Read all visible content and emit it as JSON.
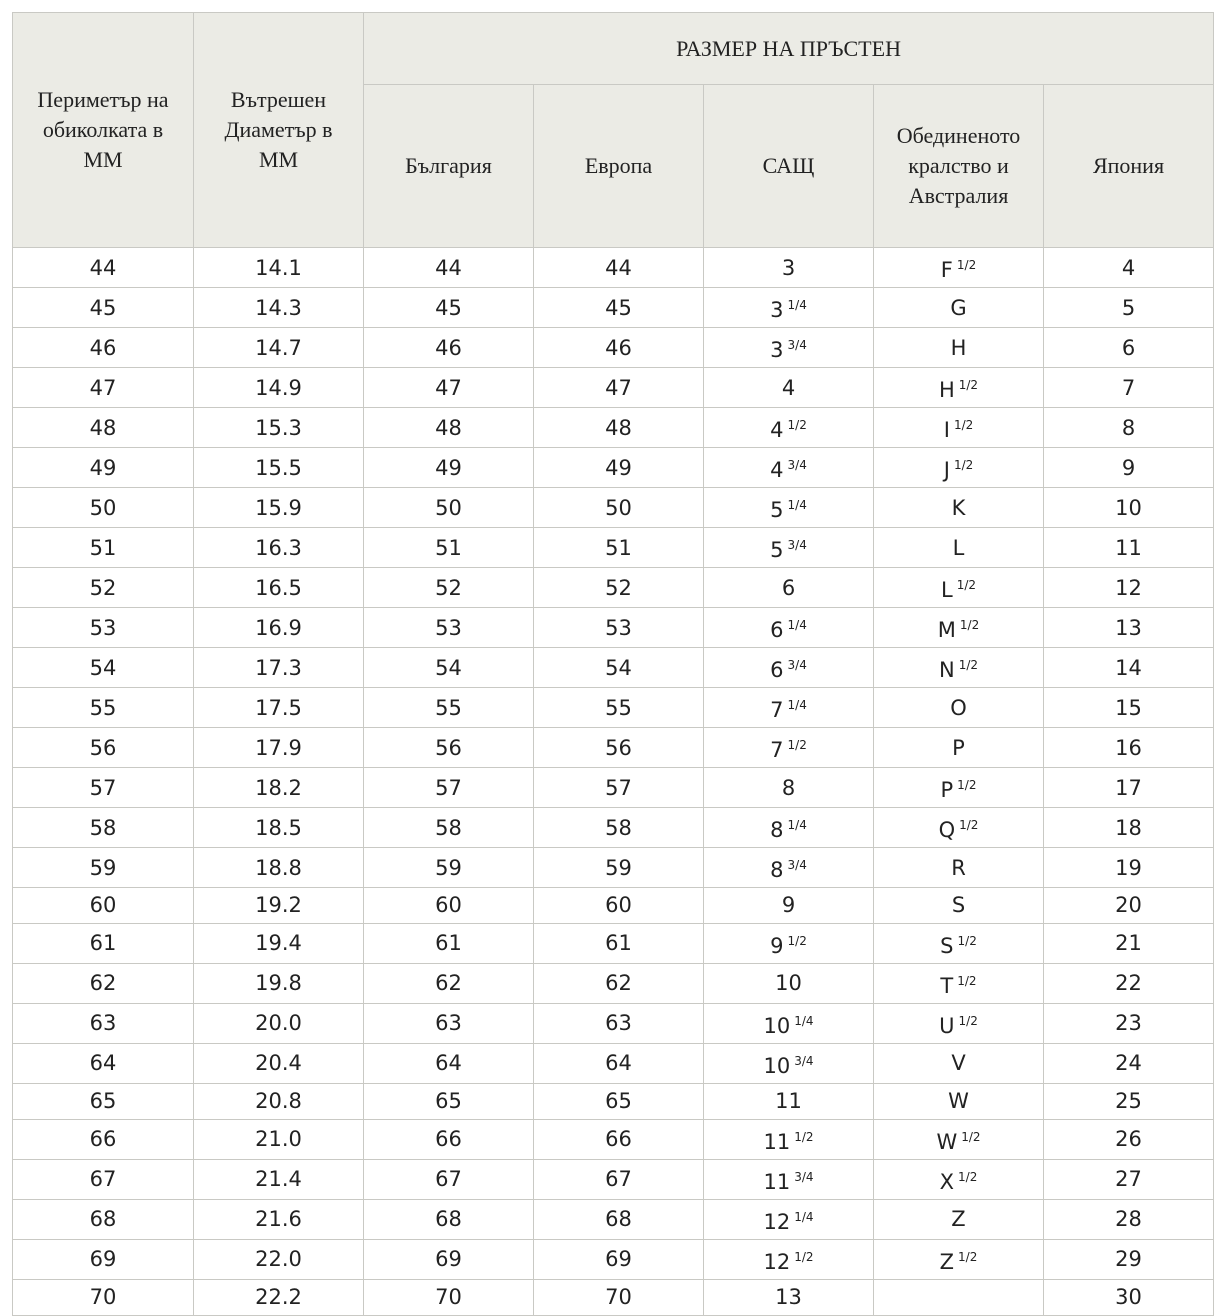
{
  "table": {
    "header": {
      "group": "РАЗМЕР НА ПРЪСТЕН",
      "columns": [
        "Периметър на обиколката в ММ",
        "Вътрешен Диаметър в ММ",
        "България",
        "Европа",
        "САЩ",
        "Обединеното кралство и Австралия",
        "Япония"
      ]
    },
    "rows": [
      [
        "44",
        "14.1",
        "44",
        "44",
        "3",
        {
          "main": "F",
          "sup": "1/2"
        },
        "4"
      ],
      [
        "45",
        "14.3",
        "45",
        "45",
        {
          "main": "3",
          "sup": "1/4"
        },
        "G",
        "5"
      ],
      [
        "46",
        "14.7",
        "46",
        "46",
        {
          "main": "3",
          "sup": "3/4"
        },
        "H",
        "6"
      ],
      [
        "47",
        "14.9",
        "47",
        "47",
        "4",
        {
          "main": "H",
          "sup": "1/2"
        },
        "7"
      ],
      [
        "48",
        "15.3",
        "48",
        "48",
        {
          "main": "4",
          "sup": "1/2"
        },
        {
          "main": "I",
          "sup": "1/2"
        },
        "8"
      ],
      [
        "49",
        "15.5",
        "49",
        "49",
        {
          "main": "4",
          "sup": "3/4"
        },
        {
          "main": "J",
          "sup": "1/2"
        },
        "9"
      ],
      [
        "50",
        "15.9",
        "50",
        "50",
        {
          "main": "5",
          "sup": "1/4"
        },
        "K",
        "10"
      ],
      [
        "51",
        "16.3",
        "51",
        "51",
        {
          "main": "5",
          "sup": "3/4"
        },
        "L",
        "11"
      ],
      [
        "52",
        "16.5",
        "52",
        "52",
        "6",
        {
          "main": "L",
          "sup": "1/2"
        },
        "12"
      ],
      [
        "53",
        "16.9",
        "53",
        "53",
        {
          "main": "6",
          "sup": "1/4"
        },
        {
          "main": "M",
          "sup": "1/2"
        },
        "13"
      ],
      [
        "54",
        "17.3",
        "54",
        "54",
        {
          "main": "6",
          "sup": "3/4"
        },
        {
          "main": "N",
          "sup": "1/2"
        },
        "14"
      ],
      [
        "55",
        "17.5",
        "55",
        "55",
        {
          "main": "7",
          "sup": "1/4"
        },
        "O",
        "15"
      ],
      [
        "56",
        "17.9",
        "56",
        "56",
        {
          "main": "7",
          "sup": "1/2"
        },
        "P",
        "16"
      ],
      [
        "57",
        "18.2",
        "57",
        "57",
        "8",
        {
          "main": "P",
          "sup": "1/2"
        },
        "17"
      ],
      [
        "58",
        "18.5",
        "58",
        "58",
        {
          "main": "8",
          "sup": "1/4"
        },
        {
          "main": "Q",
          "sup": "1/2"
        },
        "18"
      ],
      [
        "59",
        "18.8",
        "59",
        "59",
        {
          "main": "8",
          "sup": "3/4"
        },
        "R",
        "19"
      ],
      [
        "60",
        "19.2",
        "60",
        "60",
        "9",
        "S",
        "20"
      ],
      [
        "61",
        "19.4",
        "61",
        "61",
        {
          "main": "9",
          "sup": "1/2"
        },
        {
          "main": "S",
          "sup": "1/2"
        },
        "21"
      ],
      [
        "62",
        "19.8",
        "62",
        "62",
        "10",
        {
          "main": "T",
          "sup": "1/2"
        },
        "22"
      ],
      [
        "63",
        "20.0",
        "63",
        "63",
        {
          "main": "10",
          "sup": "1/4"
        },
        {
          "main": "U",
          "sup": "1/2"
        },
        "23"
      ],
      [
        "64",
        "20.4",
        "64",
        "64",
        {
          "main": "10",
          "sup": "3/4"
        },
        "V",
        "24"
      ],
      [
        "65",
        "20.8",
        "65",
        "65",
        "11",
        "W",
        "25"
      ],
      [
        "66",
        "21.0",
        "66",
        "66",
        {
          "main": "11",
          "sup": "1/2"
        },
        {
          "main": "W",
          "sup": "1/2"
        },
        "26"
      ],
      [
        "67",
        "21.4",
        "67",
        "67",
        {
          "main": "11",
          "sup": "3/4"
        },
        {
          "main": "X",
          "sup": "1/2"
        },
        "27"
      ],
      [
        "68",
        "21.6",
        "68",
        "68",
        {
          "main": "12",
          "sup": "1/4"
        },
        "Z",
        "28"
      ],
      [
        "69",
        "22.0",
        "69",
        "69",
        {
          "main": "12",
          "sup": "1/2"
        },
        {
          "main": "Z",
          "sup": "1/2"
        },
        "29"
      ],
      [
        "70",
        "22.2",
        "70",
        "70",
        "13",
        null,
        "30"
      ]
    ]
  }
}
